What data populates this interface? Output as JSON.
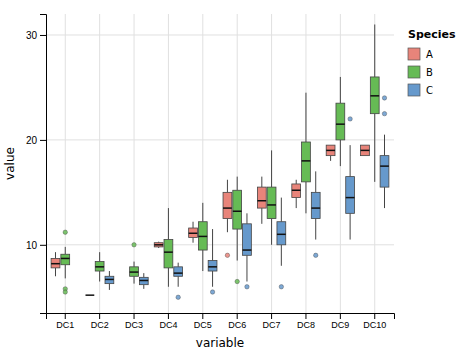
{
  "chart_data": {
    "type": "box",
    "xlabel": "variable",
    "ylabel": "value",
    "legend_title": "Species",
    "legend": "right",
    "grid": true,
    "categories": [
      "DC1",
      "DC2",
      "DC3",
      "DC4",
      "DC5",
      "DC6",
      "DC7",
      "DC8",
      "DC9",
      "DC10"
    ],
    "ylim": [
      3.5,
      32
    ],
    "yticks": [
      10,
      20,
      30
    ],
    "series": [
      {
        "name": "A",
        "color": "#E8847A",
        "values": [
          {
            "q1": 7.8,
            "med": 8.2,
            "q3": 8.7,
            "whislo": 7.0,
            "whishi": 9.3,
            "fliers": []
          },
          {
            "q1": null,
            "med": 5.2,
            "q3": null,
            "whislo": null,
            "whishi": null,
            "fliers": []
          },
          null,
          {
            "q1": 9.8,
            "med": 10.0,
            "q3": 10.2,
            "whislo": 9.7,
            "whishi": 10.3,
            "fliers": []
          },
          {
            "q1": 10.7,
            "med": 11.1,
            "q3": 11.6,
            "whislo": 10.2,
            "whishi": 12.2,
            "fliers": []
          },
          {
            "q1": 12.5,
            "med": 13.5,
            "q3": 15.0,
            "whislo": 11.2,
            "whishi": 16.2,
            "fliers": [
              9.0
            ]
          },
          {
            "q1": 13.5,
            "med": 14.2,
            "q3": 15.5,
            "whislo": 12.0,
            "whishi": 16.5,
            "fliers": []
          },
          {
            "q1": 14.5,
            "med": 15.2,
            "q3": 15.8,
            "whislo": 13.5,
            "whishi": 16.2,
            "fliers": []
          },
          {
            "q1": 18.5,
            "med": 19.0,
            "q3": 19.5,
            "whislo": 18.0,
            "whishi": 19.5,
            "fliers": []
          },
          {
            "q1": 18.5,
            "med": 19.0,
            "q3": 19.5,
            "whislo": 18.5,
            "whishi": 19.5,
            "fliers": []
          }
        ]
      },
      {
        "name": "B",
        "color": "#66BB55",
        "values": [
          {
            "q1": 8.1,
            "med": 8.7,
            "q3": 9.1,
            "whislo": 6.8,
            "whishi": 9.8,
            "fliers": [
              5.8,
              5.5,
              11.2
            ]
          },
          {
            "q1": 7.5,
            "med": 7.9,
            "q3": 8.4,
            "whislo": 6.5,
            "whishi": 9.3,
            "fliers": []
          },
          {
            "q1": 7.0,
            "med": 7.4,
            "q3": 7.9,
            "whislo": 6.3,
            "whishi": 8.4,
            "fliers": [
              10.0
            ]
          },
          {
            "q1": 7.8,
            "med": 9.3,
            "q3": 10.5,
            "whislo": 6.0,
            "whishi": 13.5,
            "fliers": []
          },
          {
            "q1": 9.5,
            "med": 10.8,
            "q3": 12.2,
            "whislo": 7.5,
            "whishi": 14.0,
            "fliers": []
          },
          {
            "q1": 11.5,
            "med": 13.2,
            "q3": 15.2,
            "whislo": 8.5,
            "whishi": 16.5,
            "fliers": [
              6.5
            ]
          },
          {
            "q1": 12.5,
            "med": 13.8,
            "q3": 15.5,
            "whislo": 10.0,
            "whishi": 19.0,
            "fliers": []
          },
          {
            "q1": 16.0,
            "med": 18.0,
            "q3": 19.8,
            "whislo": 13.0,
            "whishi": 24.5,
            "fliers": []
          },
          {
            "q1": 20.0,
            "med": 21.5,
            "q3": 23.5,
            "whislo": 17.5,
            "whishi": 26.0,
            "fliers": []
          },
          {
            "q1": 22.5,
            "med": 24.2,
            "q3": 26.0,
            "whislo": 16.0,
            "whishi": 31.0,
            "fliers": []
          }
        ]
      },
      {
        "name": "C",
        "color": "#6699CC",
        "values": [
          null,
          {
            "q1": 6.3,
            "med": 6.7,
            "q3": 7.0,
            "whislo": 5.7,
            "whishi": 7.5,
            "fliers": []
          },
          {
            "q1": 6.2,
            "med": 6.6,
            "q3": 6.9,
            "whislo": 5.8,
            "whishi": 7.3,
            "fliers": []
          },
          {
            "q1": 7.0,
            "med": 7.3,
            "q3": 7.9,
            "whislo": 6.0,
            "whishi": 8.3,
            "fliers": [
              5.0
            ]
          },
          {
            "q1": 7.5,
            "med": 7.9,
            "q3": 8.5,
            "whislo": 6.0,
            "whishi": 11.5,
            "fliers": [
              5.5
            ]
          },
          {
            "q1": 9.0,
            "med": 9.5,
            "q3": 12.0,
            "whislo": 6.5,
            "whishi": 13.0,
            "fliers": [
              6.0
            ]
          },
          {
            "q1": 10.0,
            "med": 11.0,
            "q3": 12.2,
            "whislo": 8.0,
            "whishi": 14.5,
            "fliers": [
              6.0
            ]
          },
          {
            "q1": 12.5,
            "med": 13.5,
            "q3": 15.0,
            "whislo": 10.5,
            "whishi": 17.0,
            "fliers": [
              9.0
            ]
          },
          {
            "q1": 13.0,
            "med": 14.5,
            "q3": 16.5,
            "whislo": 10.5,
            "whishi": 19.5,
            "fliers": [
              22.0
            ]
          },
          {
            "q1": 15.5,
            "med": 17.5,
            "q3": 18.5,
            "whislo": 13.5,
            "whishi": 20.5,
            "fliers": [
              22.5,
              24.0
            ]
          }
        ]
      }
    ]
  }
}
